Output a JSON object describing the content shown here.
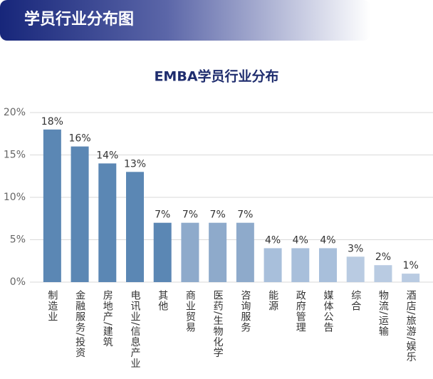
{
  "header": {
    "title": "学员行业分布图"
  },
  "chart_data": {
    "type": "bar",
    "title": "EMBA学员行业分布",
    "categories": [
      "制造业",
      "金融服务/投资",
      "房地产/建筑",
      "电讯业/信息产业",
      "其他",
      "商业贸易",
      "医药/生物化学",
      "咨询服务",
      "能源",
      "政府管理",
      "媒体公告",
      "综合",
      "物流/运输",
      "酒店/旅游/娱乐"
    ],
    "values": [
      18,
      16,
      14,
      13,
      7,
      7,
      7,
      7,
      4,
      4,
      4,
      3,
      2,
      1
    ],
    "value_labels": [
      "18%",
      "16%",
      "14%",
      "13%",
      "7%",
      "7%",
      "7%",
      "7%",
      "4%",
      "4%",
      "4%",
      "3%",
      "2%",
      "1%"
    ],
    "colors": [
      "#5b87b4",
      "#5b87b4",
      "#5b87b4",
      "#5b87b4",
      "#5b87b4",
      "#8eaacb",
      "#8eaacb",
      "#8eaacb",
      "#a8bfdb",
      "#a8bfdb",
      "#a8bfdb",
      "#b9cbe2",
      "#b9cbe2",
      "#b9cbe2"
    ],
    "ylim": [
      0,
      20
    ],
    "yticks": [
      {
        "value": 0,
        "label": "0%"
      },
      {
        "value": 5,
        "label": "5%"
      },
      {
        "value": 10,
        "label": "10%"
      },
      {
        "value": 15,
        "label": "15%"
      },
      {
        "value": 20,
        "label": "20%"
      }
    ],
    "grid": true
  }
}
